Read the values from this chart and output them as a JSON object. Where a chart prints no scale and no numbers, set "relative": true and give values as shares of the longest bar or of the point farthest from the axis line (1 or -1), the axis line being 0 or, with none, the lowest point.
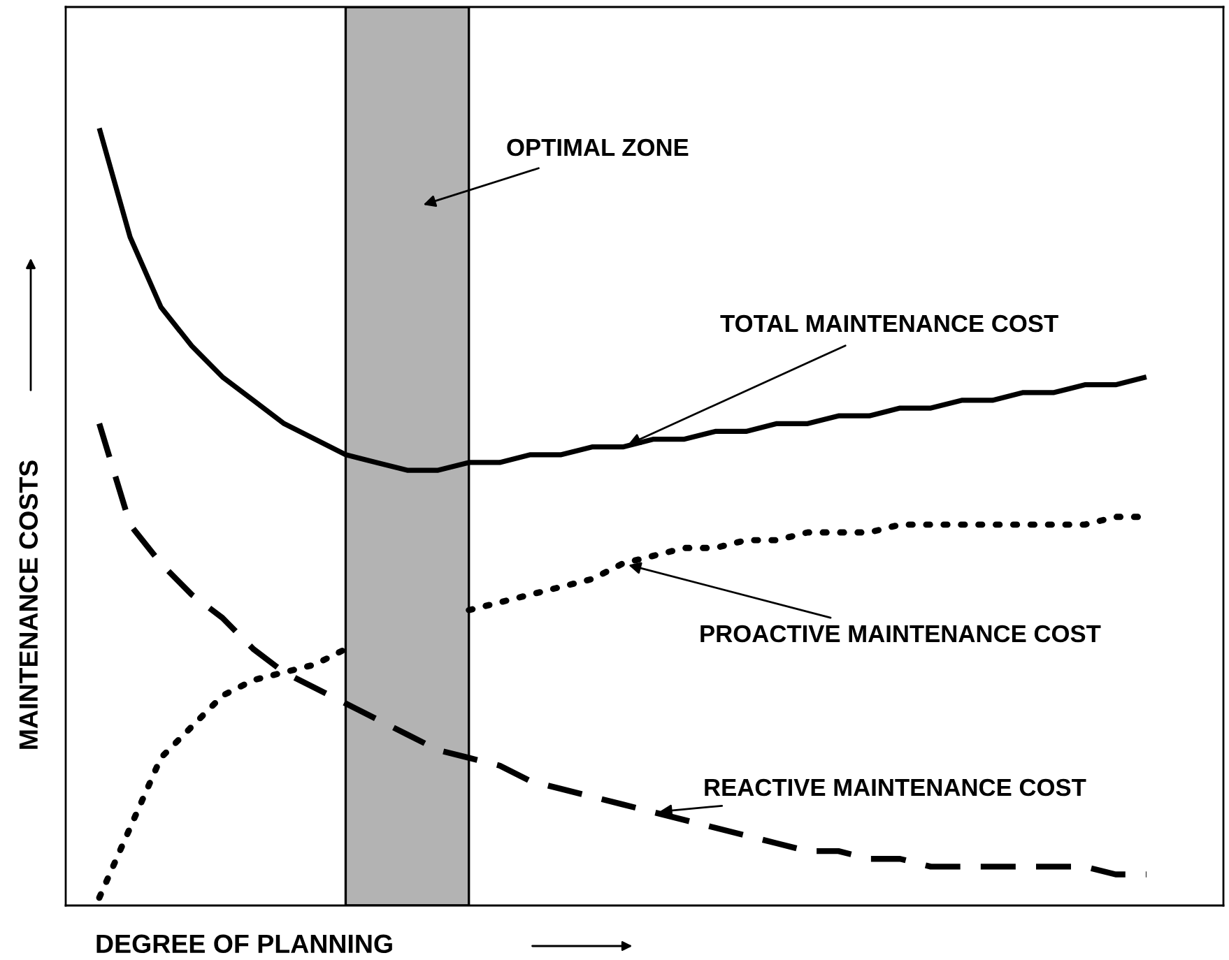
{
  "chart_data": {
    "type": "line",
    "relative": true,
    "xlabel": "DEGREE OF PLANNING",
    "ylabel": "MAINTENANCE COSTS",
    "tick_labels": false,
    "annotations": [
      "OPTIMAL ZONE"
    ],
    "categories": [
      null,
      null,
      null,
      null,
      null,
      null,
      null,
      null,
      null,
      null,
      null,
      null,
      null,
      null,
      null,
      null,
      null,
      null,
      null,
      null,
      null,
      null,
      null,
      null,
      null,
      null,
      null,
      null,
      null,
      null,
      null,
      null,
      null,
      null,
      null
    ],
    "series": [
      {
        "name": "TOTAL MAINTENANCE COST",
        "color": "#000000",
        "line_style": "solid",
        "values": [
          1.0,
          0.86,
          0.77,
          0.72,
          0.68,
          0.65,
          0.62,
          0.6,
          0.58,
          0.57,
          0.56,
          0.56,
          0.57,
          0.57,
          0.58,
          0.58,
          0.59,
          0.59,
          0.6,
          0.6,
          0.61,
          0.61,
          0.62,
          0.62,
          0.63,
          0.63,
          0.64,
          0.64,
          0.65,
          0.65,
          0.66,
          0.66,
          0.67,
          0.67,
          0.68
        ]
      },
      {
        "name": "PROACTIVE MAINTENANCE COST",
        "color": "#000000",
        "line_style": "dotted",
        "values": [
          0.01,
          0.1,
          0.19,
          0.23,
          0.27,
          0.29,
          0.3,
          0.31,
          0.33,
          null,
          null,
          null,
          0.38,
          0.39,
          0.4,
          0.41,
          0.42,
          0.44,
          0.45,
          0.46,
          0.46,
          0.47,
          0.47,
          0.48,
          0.48,
          0.48,
          0.49,
          0.49,
          0.49,
          0.49,
          0.49,
          0.49,
          0.49,
          0.5,
          0.5
        ]
      },
      {
        "name": "REACTIVE MAINTENANCE COST",
        "color": "#000000",
        "line_style": "dashed",
        "values": [
          0.62,
          0.49,
          0.44,
          0.4,
          0.37,
          0.33,
          0.3,
          0.28,
          0.26,
          0.24,
          0.22,
          0.2,
          0.19,
          0.18,
          0.16,
          0.15,
          0.14,
          0.13,
          0.12,
          0.11,
          0.1,
          0.09,
          0.08,
          0.07,
          0.07,
          0.06,
          0.06,
          0.05,
          0.05,
          0.05,
          0.05,
          0.05,
          0.05,
          0.04,
          0.04
        ]
      }
    ]
  }
}
